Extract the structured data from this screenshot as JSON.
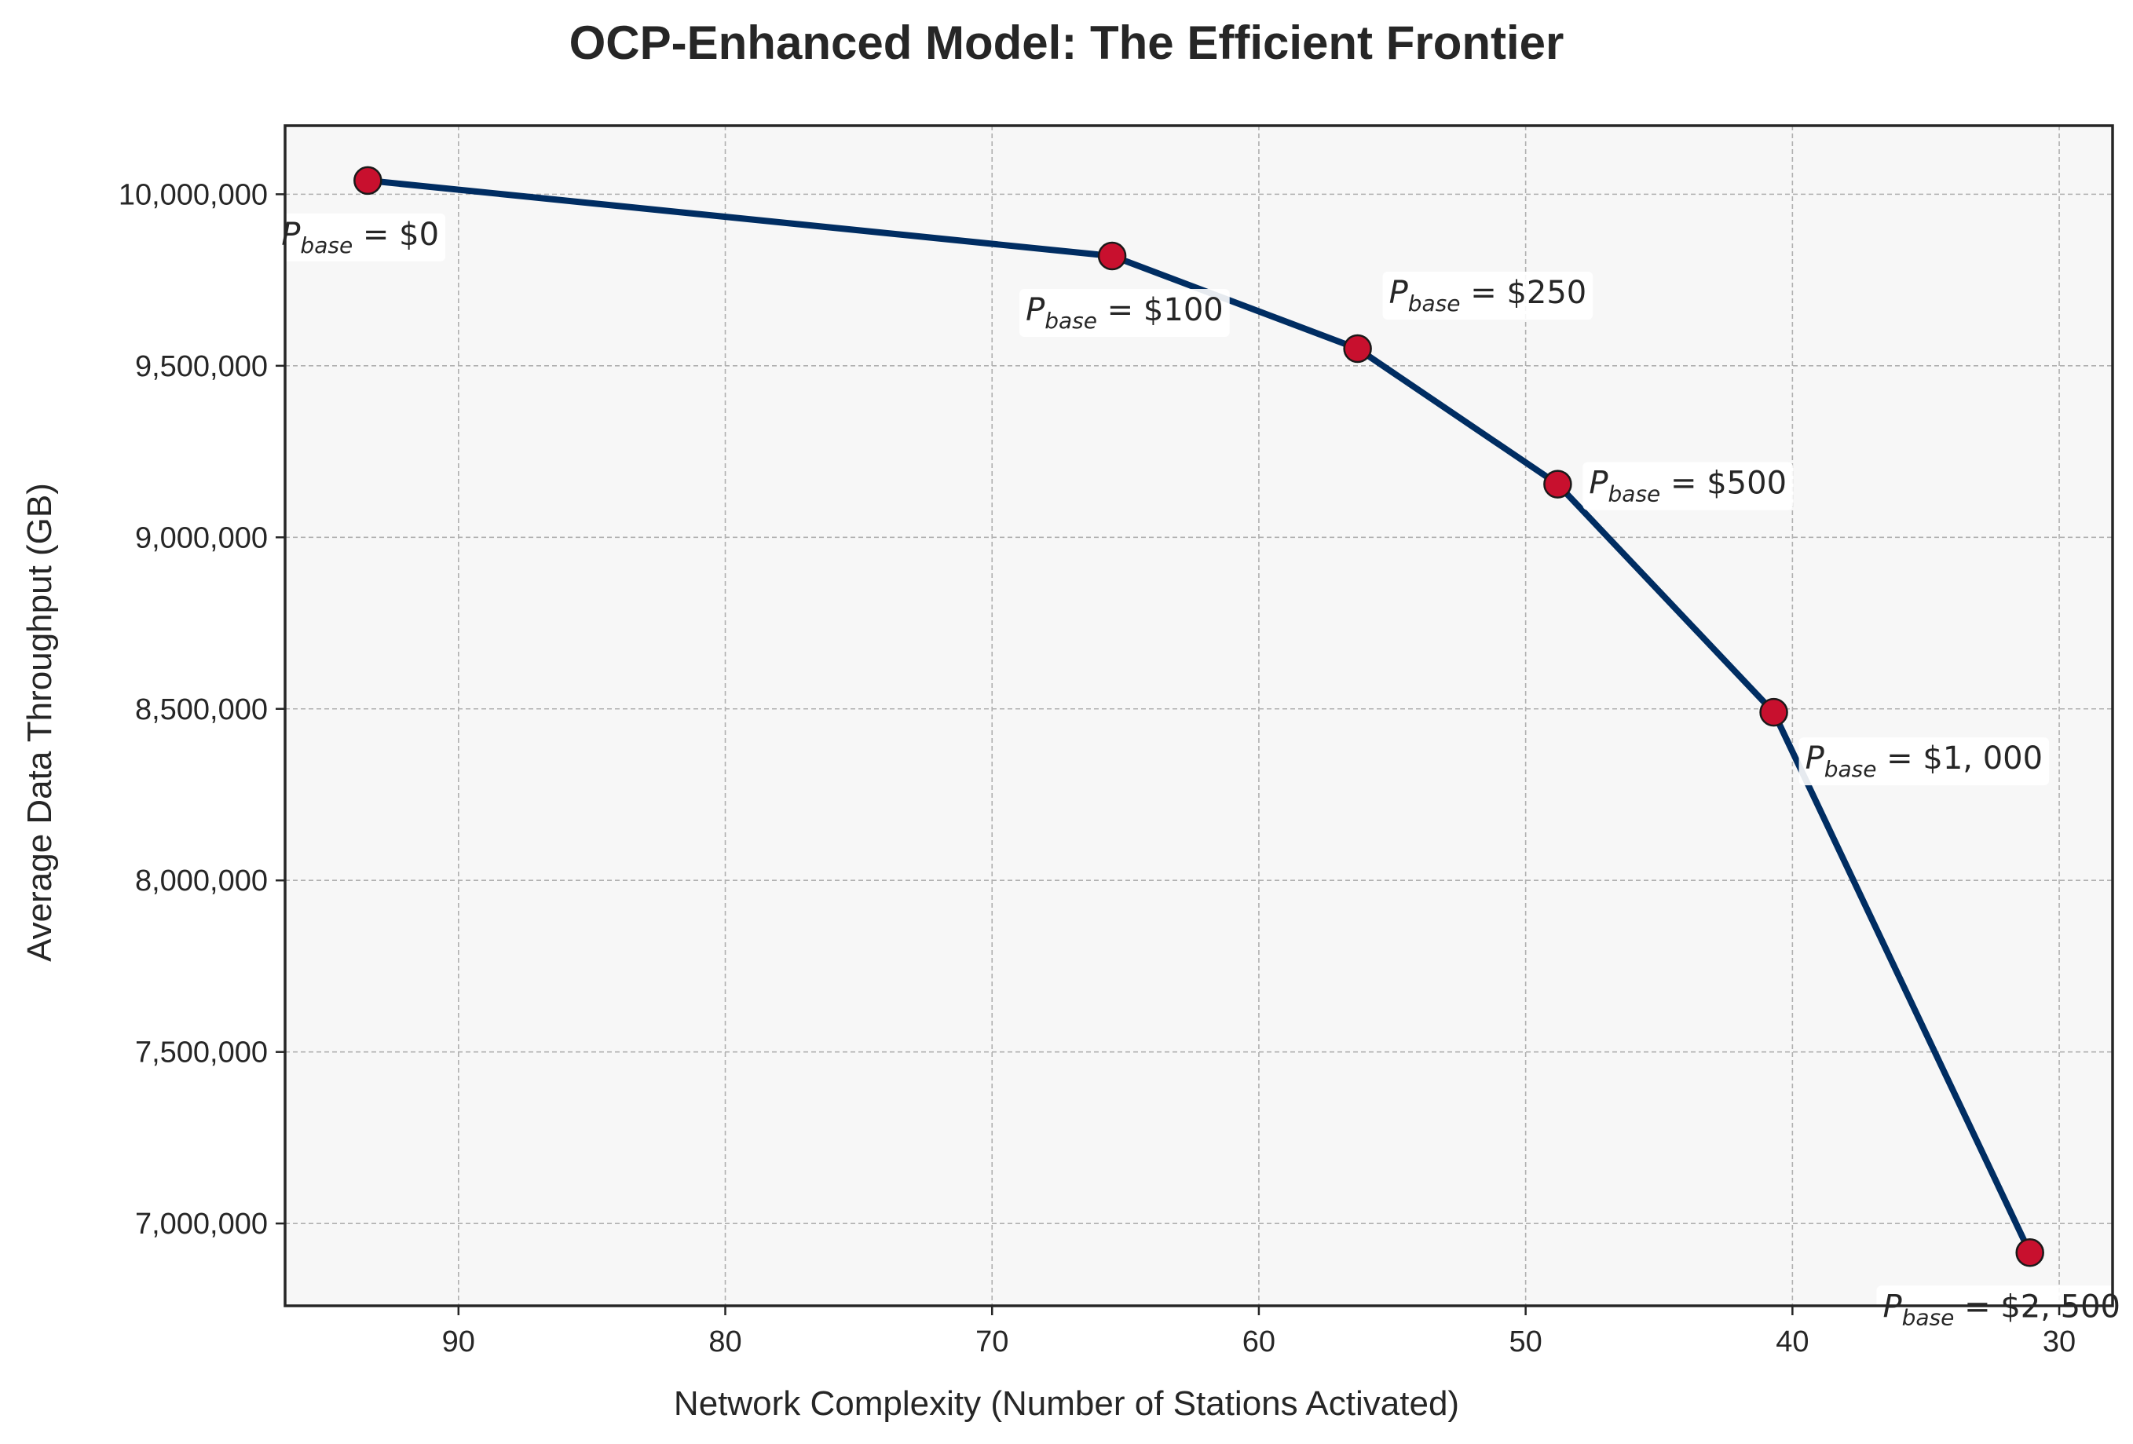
{
  "chart_data": {
    "type": "line",
    "title": "OCP-Enhanced Model: The Efficient Frontier",
    "xlabel": "Network Complexity (Number of Stations Activated)",
    "ylabel": "Average Data Throughput (GB)",
    "xlim": [
      96.5,
      28
    ],
    "ylim": [
      6760000,
      10200000
    ],
    "x_reversed": true,
    "x_ticks": [
      90,
      80,
      70,
      60,
      50,
      40,
      30
    ],
    "x_tick_labels": [
      "90",
      "80",
      "70",
      "60",
      "50",
      "40",
      "30"
    ],
    "y_ticks": [
      7000000,
      7500000,
      8000000,
      8500000,
      9000000,
      9500000,
      10000000
    ],
    "y_tick_labels": [
      "7,000,000",
      "7,500,000",
      "8,000,000",
      "8,500,000",
      "9,000,000",
      "9,500,000",
      "10,000,000"
    ],
    "grid": true,
    "line_color": "#002d62",
    "marker_color": "#c8102e",
    "background_color": "#f7f7f7",
    "points": [
      {
        "x": 93.4,
        "y": 10040000,
        "label_main": "P",
        "label_sub": "base",
        "label_rest": " = $0",
        "label_place": "below-left"
      },
      {
        "x": 65.5,
        "y": 9820000,
        "label_main": "P",
        "label_sub": "base",
        "label_rest": " = $100",
        "label_place": "below-left"
      },
      {
        "x": 56.3,
        "y": 9550000,
        "label_main": "P",
        "label_sub": "base",
        "label_rest": " = $250",
        "label_place": "above-right"
      },
      {
        "x": 48.8,
        "y": 9155000,
        "label_main": "P",
        "label_sub": "base",
        "label_rest": " = $500",
        "label_place": "right"
      },
      {
        "x": 40.7,
        "y": 8490000,
        "label_main": "P",
        "label_sub": "base",
        "label_rest": " = $1, 000",
        "label_place": "below-right"
      },
      {
        "x": 31.1,
        "y": 6915000,
        "label_main": "P",
        "label_sub": "base",
        "label_rest": " = $2, 500",
        "label_place": "below-left"
      }
    ]
  }
}
